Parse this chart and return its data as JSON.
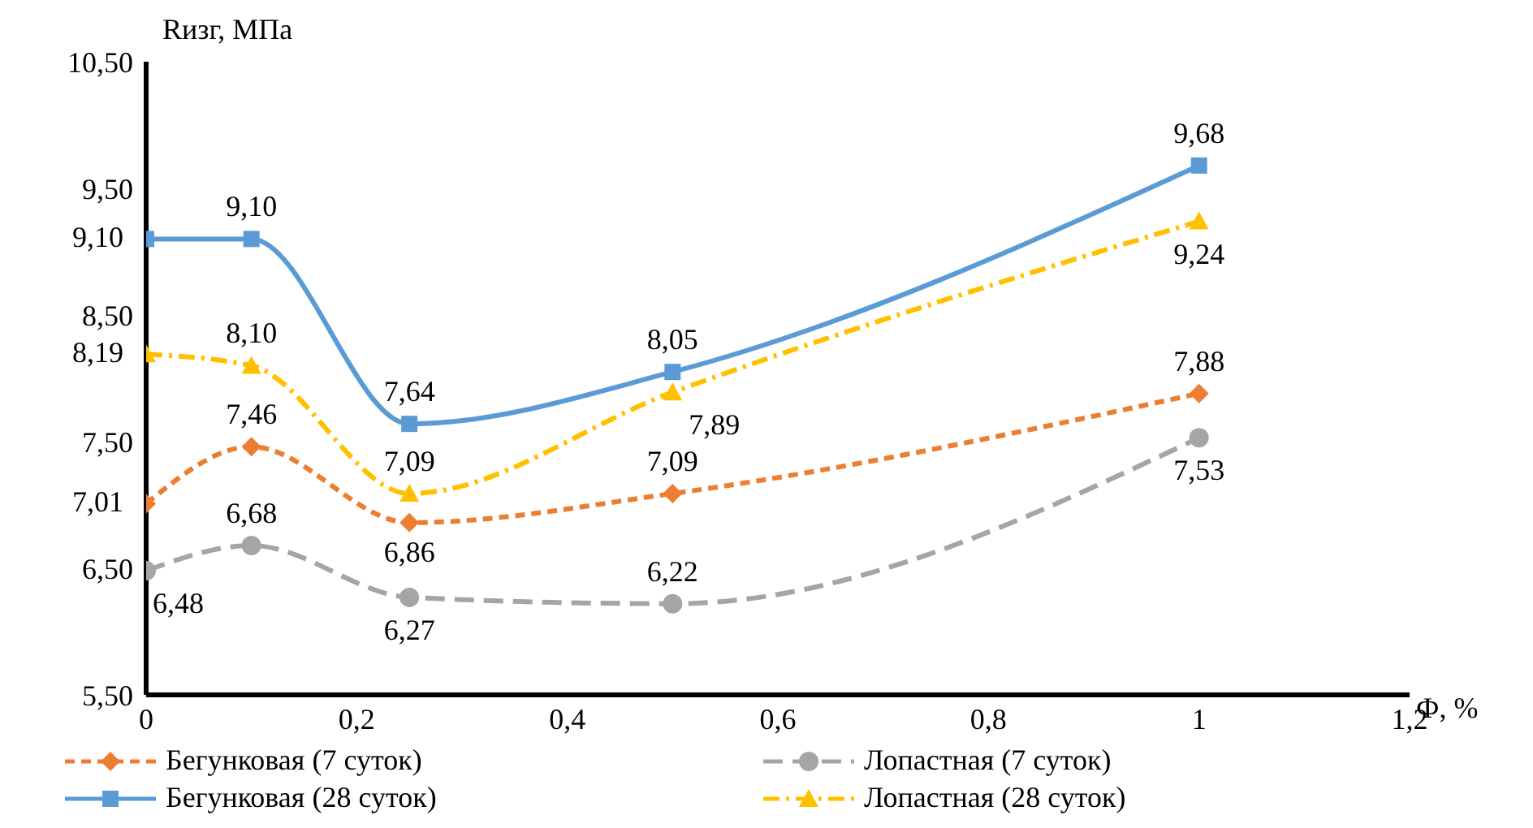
{
  "chart_data": {
    "type": "line",
    "xlabel": "Ф, %",
    "ylabel": "Rизг, МПа",
    "x": [
      0,
      0.1,
      0.25,
      0.5,
      1
    ],
    "xlim": [
      0,
      1.2
    ],
    "xticks": [
      {
        "value": 0,
        "label": "0"
      },
      {
        "value": 0.2,
        "label": "0,2"
      },
      {
        "value": 0.4,
        "label": "0,4"
      },
      {
        "value": 0.6,
        "label": "0,6"
      },
      {
        "value": 0.8,
        "label": "0,8"
      },
      {
        "value": 1,
        "label": "1"
      },
      {
        "value": 1.2,
        "label": "1,2"
      }
    ],
    "ylim": [
      5.5,
      10.5
    ],
    "yticks": [
      {
        "value": 5.5,
        "label": "5,50"
      },
      {
        "value": 6.5,
        "label": "6,50"
      },
      {
        "value": 7.5,
        "label": "7,50"
      },
      {
        "value": 8.5,
        "label": "8,50"
      },
      {
        "value": 9.5,
        "label": "9,50"
      },
      {
        "value": 10.5,
        "label": "10,50"
      }
    ],
    "grid": false,
    "legend": "bottom",
    "series": [
      {
        "name": "Бегунковая (7 суток)",
        "color": "#ed7d31",
        "marker": "diamond",
        "line_style": "dashed",
        "values": [
          7.01,
          7.46,
          6.86,
          7.09,
          7.88
        ],
        "value_labels": [
          "7,01",
          "7,46",
          "6,86",
          "7,09",
          "7,88"
        ]
      },
      {
        "name": "Лопастная (7 суток)",
        "color": "#a5a5a5",
        "marker": "circle",
        "line_style": "dashed",
        "values": [
          6.48,
          6.68,
          6.27,
          6.22,
          7.53
        ],
        "value_labels": [
          "6,48",
          "6,68",
          "6,27",
          "6,22",
          "7,53"
        ]
      },
      {
        "name": "Бегунковая (28 суток)",
        "color": "#5b9bd5",
        "marker": "square",
        "line_style": "solid",
        "values": [
          9.1,
          9.1,
          7.64,
          8.05,
          9.68
        ],
        "value_labels": [
          "9,10",
          "9,10",
          "7,64",
          "8,05",
          "9,68"
        ]
      },
      {
        "name": "Лопастная (28 суток)",
        "color": "#ffc000",
        "marker": "triangle",
        "line_style": "dashed",
        "values": [
          8.19,
          8.1,
          7.09,
          7.89,
          9.24
        ],
        "value_labels": [
          "8,19",
          "8,10",
          "7,09",
          "7,89",
          "9,24"
        ]
      }
    ]
  }
}
